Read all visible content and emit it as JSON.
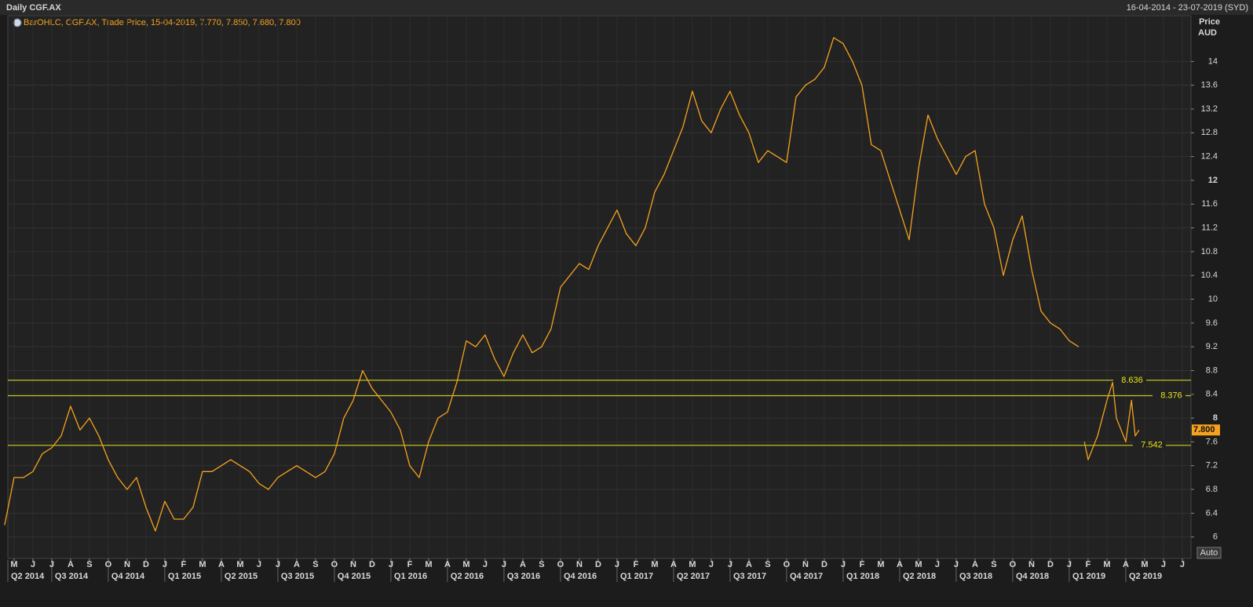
{
  "chart_data": {
    "type": "line",
    "title": "Daily CGF.AX",
    "date_range": "16-04-2014 - 23-07-2019 (SYD)",
    "legend_text": "BarOHLC, CGF.AX, Trade Price, 15-04-2019, 7.770, 7.850, 7.680, 7.800",
    "y_axis_title": "Price",
    "y_axis_unit": "AUD",
    "scale_button": "Auto",
    "grid": true,
    "ylim": [
      5.64,
      14.77
    ],
    "yticks": [
      6,
      6.4,
      6.8,
      7.2,
      7.6,
      8,
      8.4,
      8.8,
      9.2,
      9.6,
      10,
      10.4,
      10.8,
      11.2,
      11.6,
      12,
      12.4,
      12.8,
      13.2,
      13.6,
      14
    ],
    "xlim": [
      -0.33,
      62.46
    ],
    "xticks": [
      {
        "value": 0,
        "label": "M"
      },
      {
        "value": 1,
        "label": "J"
      },
      {
        "value": 2,
        "label": "J"
      },
      {
        "value": 3,
        "label": "A"
      },
      {
        "value": 4,
        "label": "S"
      },
      {
        "value": 5,
        "label": "O"
      },
      {
        "value": 6,
        "label": "N"
      },
      {
        "value": 7,
        "label": "D"
      },
      {
        "value": 8,
        "label": "J"
      },
      {
        "value": 9,
        "label": "F"
      },
      {
        "value": 10,
        "label": "M"
      },
      {
        "value": 11,
        "label": "A"
      },
      {
        "value": 12,
        "label": "M"
      },
      {
        "value": 13,
        "label": "J"
      },
      {
        "value": 14,
        "label": "J"
      },
      {
        "value": 15,
        "label": "A"
      },
      {
        "value": 16,
        "label": "S"
      },
      {
        "value": 17,
        "label": "O"
      },
      {
        "value": 18,
        "label": "N"
      },
      {
        "value": 19,
        "label": "D"
      },
      {
        "value": 20,
        "label": "J"
      },
      {
        "value": 21,
        "label": "F"
      },
      {
        "value": 22,
        "label": "M"
      },
      {
        "value": 23,
        "label": "A"
      },
      {
        "value": 24,
        "label": "M"
      },
      {
        "value": 25,
        "label": "J"
      },
      {
        "value": 26,
        "label": "J"
      },
      {
        "value": 27,
        "label": "A"
      },
      {
        "value": 28,
        "label": "S"
      },
      {
        "value": 29,
        "label": "O"
      },
      {
        "value": 30,
        "label": "N"
      },
      {
        "value": 31,
        "label": "D"
      },
      {
        "value": 32,
        "label": "J"
      },
      {
        "value": 33,
        "label": "F"
      },
      {
        "value": 34,
        "label": "M"
      },
      {
        "value": 35,
        "label": "A"
      },
      {
        "value": 36,
        "label": "M"
      },
      {
        "value": 37,
        "label": "J"
      },
      {
        "value": 38,
        "label": "J"
      },
      {
        "value": 39,
        "label": "A"
      },
      {
        "value": 40,
        "label": "S"
      },
      {
        "value": 41,
        "label": "O"
      },
      {
        "value": 42,
        "label": "N"
      },
      {
        "value": 43,
        "label": "D"
      },
      {
        "value": 44,
        "label": "J"
      },
      {
        "value": 45,
        "label": "F"
      },
      {
        "value": 46,
        "label": "M"
      },
      {
        "value": 47,
        "label": "A"
      },
      {
        "value": 48,
        "label": "M"
      },
      {
        "value": 49,
        "label": "J"
      },
      {
        "value": 50,
        "label": "J"
      },
      {
        "value": 51,
        "label": "A"
      },
      {
        "value": 52,
        "label": "S"
      },
      {
        "value": 53,
        "label": "O"
      },
      {
        "value": 54,
        "label": "N"
      },
      {
        "value": 55,
        "label": "D"
      },
      {
        "value": 56,
        "label": "J"
      },
      {
        "value": 57,
        "label": "F"
      },
      {
        "value": 58,
        "label": "M"
      },
      {
        "value": 59,
        "label": "A"
      },
      {
        "value": 60,
        "label": "M"
      },
      {
        "value": 61,
        "label": "J"
      },
      {
        "value": 62,
        "label": "J"
      }
    ],
    "quarter_ticks": [
      {
        "value": -1,
        "label": "Q2 2014"
      },
      {
        "value": 2,
        "label": "Q3 2014"
      },
      {
        "value": 5,
        "label": "Q4 2014"
      },
      {
        "value": 8,
        "label": "Q1 2015"
      },
      {
        "value": 11,
        "label": "Q2 2015"
      },
      {
        "value": 14,
        "label": "Q3 2015"
      },
      {
        "value": 17,
        "label": "Q4 2015"
      },
      {
        "value": 20,
        "label": "Q1 2016"
      },
      {
        "value": 23,
        "label": "Q2 2016"
      },
      {
        "value": 26,
        "label": "Q3 2016"
      },
      {
        "value": 29,
        "label": "Q4 2016"
      },
      {
        "value": 32,
        "label": "Q1 2017"
      },
      {
        "value": 35,
        "label": "Q2 2017"
      },
      {
        "value": 38,
        "label": "Q3 2017"
      },
      {
        "value": 41,
        "label": "Q4 2017"
      },
      {
        "value": 44,
        "label": "Q1 2018"
      },
      {
        "value": 47,
        "label": "Q2 2018"
      },
      {
        "value": 50,
        "label": "Q3 2018"
      },
      {
        "value": 53,
        "label": "Q4 2018"
      },
      {
        "value": 56,
        "label": "Q1 2019"
      },
      {
        "value": 59,
        "label": "Q2 2019"
      }
    ],
    "levels": [
      8.636,
      8.376,
      7.542
    ],
    "level_color": "#e6e619",
    "last_price": {
      "value": 7.8,
      "label": "7.800"
    },
    "series": [
      {
        "name": "CGF.AX",
        "color": "#f5a21e",
        "x": [
          -0.5,
          0,
          0.5,
          1,
          1.5,
          2,
          2.5,
          3,
          3.5,
          4,
          4.5,
          5,
          5.5,
          6,
          6.5,
          7,
          7.5,
          8,
          8.5,
          9,
          9.5,
          10,
          10.5,
          11,
          11.5,
          12,
          12.5,
          13,
          13.5,
          14,
          14.5,
          15,
          15.5,
          16,
          16.5,
          17,
          17.5,
          18,
          18.5,
          19,
          19.5,
          20,
          20.5,
          21,
          21.5,
          22,
          22.5,
          23,
          23.5,
          24,
          24.5,
          25,
          25.5,
          26,
          26.5,
          27,
          27.5,
          28,
          28.5,
          29,
          29.5,
          30,
          30.5,
          31,
          31.5,
          32,
          32.5,
          33,
          33.5,
          34,
          34.5,
          35,
          35.5,
          36,
          36.5,
          37,
          37.5,
          38,
          38.5,
          39,
          39.5,
          40,
          40.5,
          41,
          41.5,
          42,
          42.5,
          43,
          43.5,
          44,
          44.5,
          45,
          45.5,
          46,
          46.5,
          47,
          47.5,
          48,
          48.5,
          49,
          49.5,
          50,
          50.5,
          51,
          51.5,
          52,
          52.5,
          53,
          53.5,
          54,
          54.5,
          55,
          55.5,
          56,
          56.5,
          56.7,
          56.8,
          57,
          57.5,
          58,
          58.3,
          58.5,
          59,
          59.3,
          59.5,
          59.7
        ],
        "values": [
          6.2,
          7.0,
          7.0,
          7.1,
          7.4,
          7.5,
          7.7,
          8.2,
          7.8,
          8.0,
          7.7,
          7.3,
          7.0,
          6.8,
          7.0,
          6.5,
          6.1,
          6.6,
          6.3,
          6.3,
          6.5,
          7.1,
          7.1,
          7.2,
          7.3,
          7.2,
          7.1,
          6.9,
          6.8,
          7.0,
          7.1,
          7.2,
          7.1,
          7.0,
          7.1,
          7.4,
          8.0,
          8.3,
          8.8,
          8.5,
          8.3,
          8.1,
          7.8,
          7.2,
          7.0,
          7.6,
          8.0,
          8.1,
          8.6,
          9.3,
          9.2,
          9.4,
          9.0,
          8.7,
          9.1,
          9.4,
          9.1,
          9.2,
          9.5,
          10.2,
          10.4,
          10.6,
          10.5,
          10.9,
          11.2,
          11.5,
          11.1,
          10.9,
          11.2,
          11.8,
          12.1,
          12.5,
          12.9,
          13.5,
          13.0,
          12.8,
          13.2,
          13.5,
          13.1,
          12.8,
          12.3,
          12.5,
          12.4,
          12.3,
          13.4,
          13.6,
          13.7,
          13.9,
          14.4,
          14.3,
          14.0,
          13.6,
          12.6,
          12.5,
          12.0,
          11.5,
          11.0,
          12.2,
          13.1,
          12.7,
          12.4,
          12.1,
          12.4,
          12.5,
          11.6,
          11.2,
          10.4,
          11.0,
          11.4,
          10.5,
          9.8,
          9.6,
          9.5,
          9.3,
          9.2,
          null,
          7.6,
          7.3,
          7.7,
          8.3,
          8.6,
          8.0,
          7.6,
          8.3,
          7.7,
          7.8
        ]
      }
    ]
  }
}
